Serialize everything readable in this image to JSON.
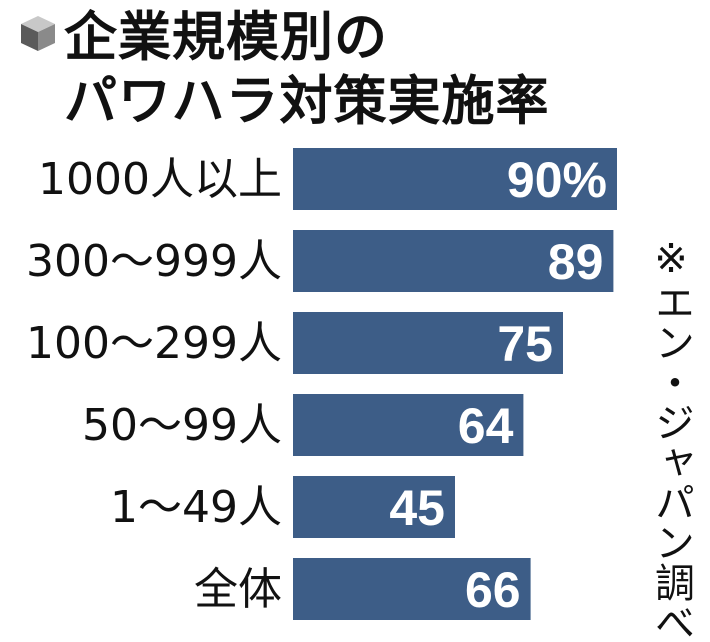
{
  "chart_data": {
    "type": "bar",
    "orientation": "horizontal",
    "title_lines": [
      "企業規模別の",
      "パワハラ対策実施率"
    ],
    "categories": [
      "1000人以上",
      "300〜999人",
      "100〜299人",
      "50〜99人",
      "1〜49人",
      "全体"
    ],
    "values": [
      90,
      89,
      75,
      64,
      45,
      66
    ],
    "value_labels": [
      "90%",
      "89",
      "75",
      "64",
      "45",
      "66"
    ],
    "xlim": [
      0,
      100
    ],
    "bar_color": "#3d5d87",
    "label_color": "#ffffff",
    "note": "※エン・ジャパン調べ"
  }
}
